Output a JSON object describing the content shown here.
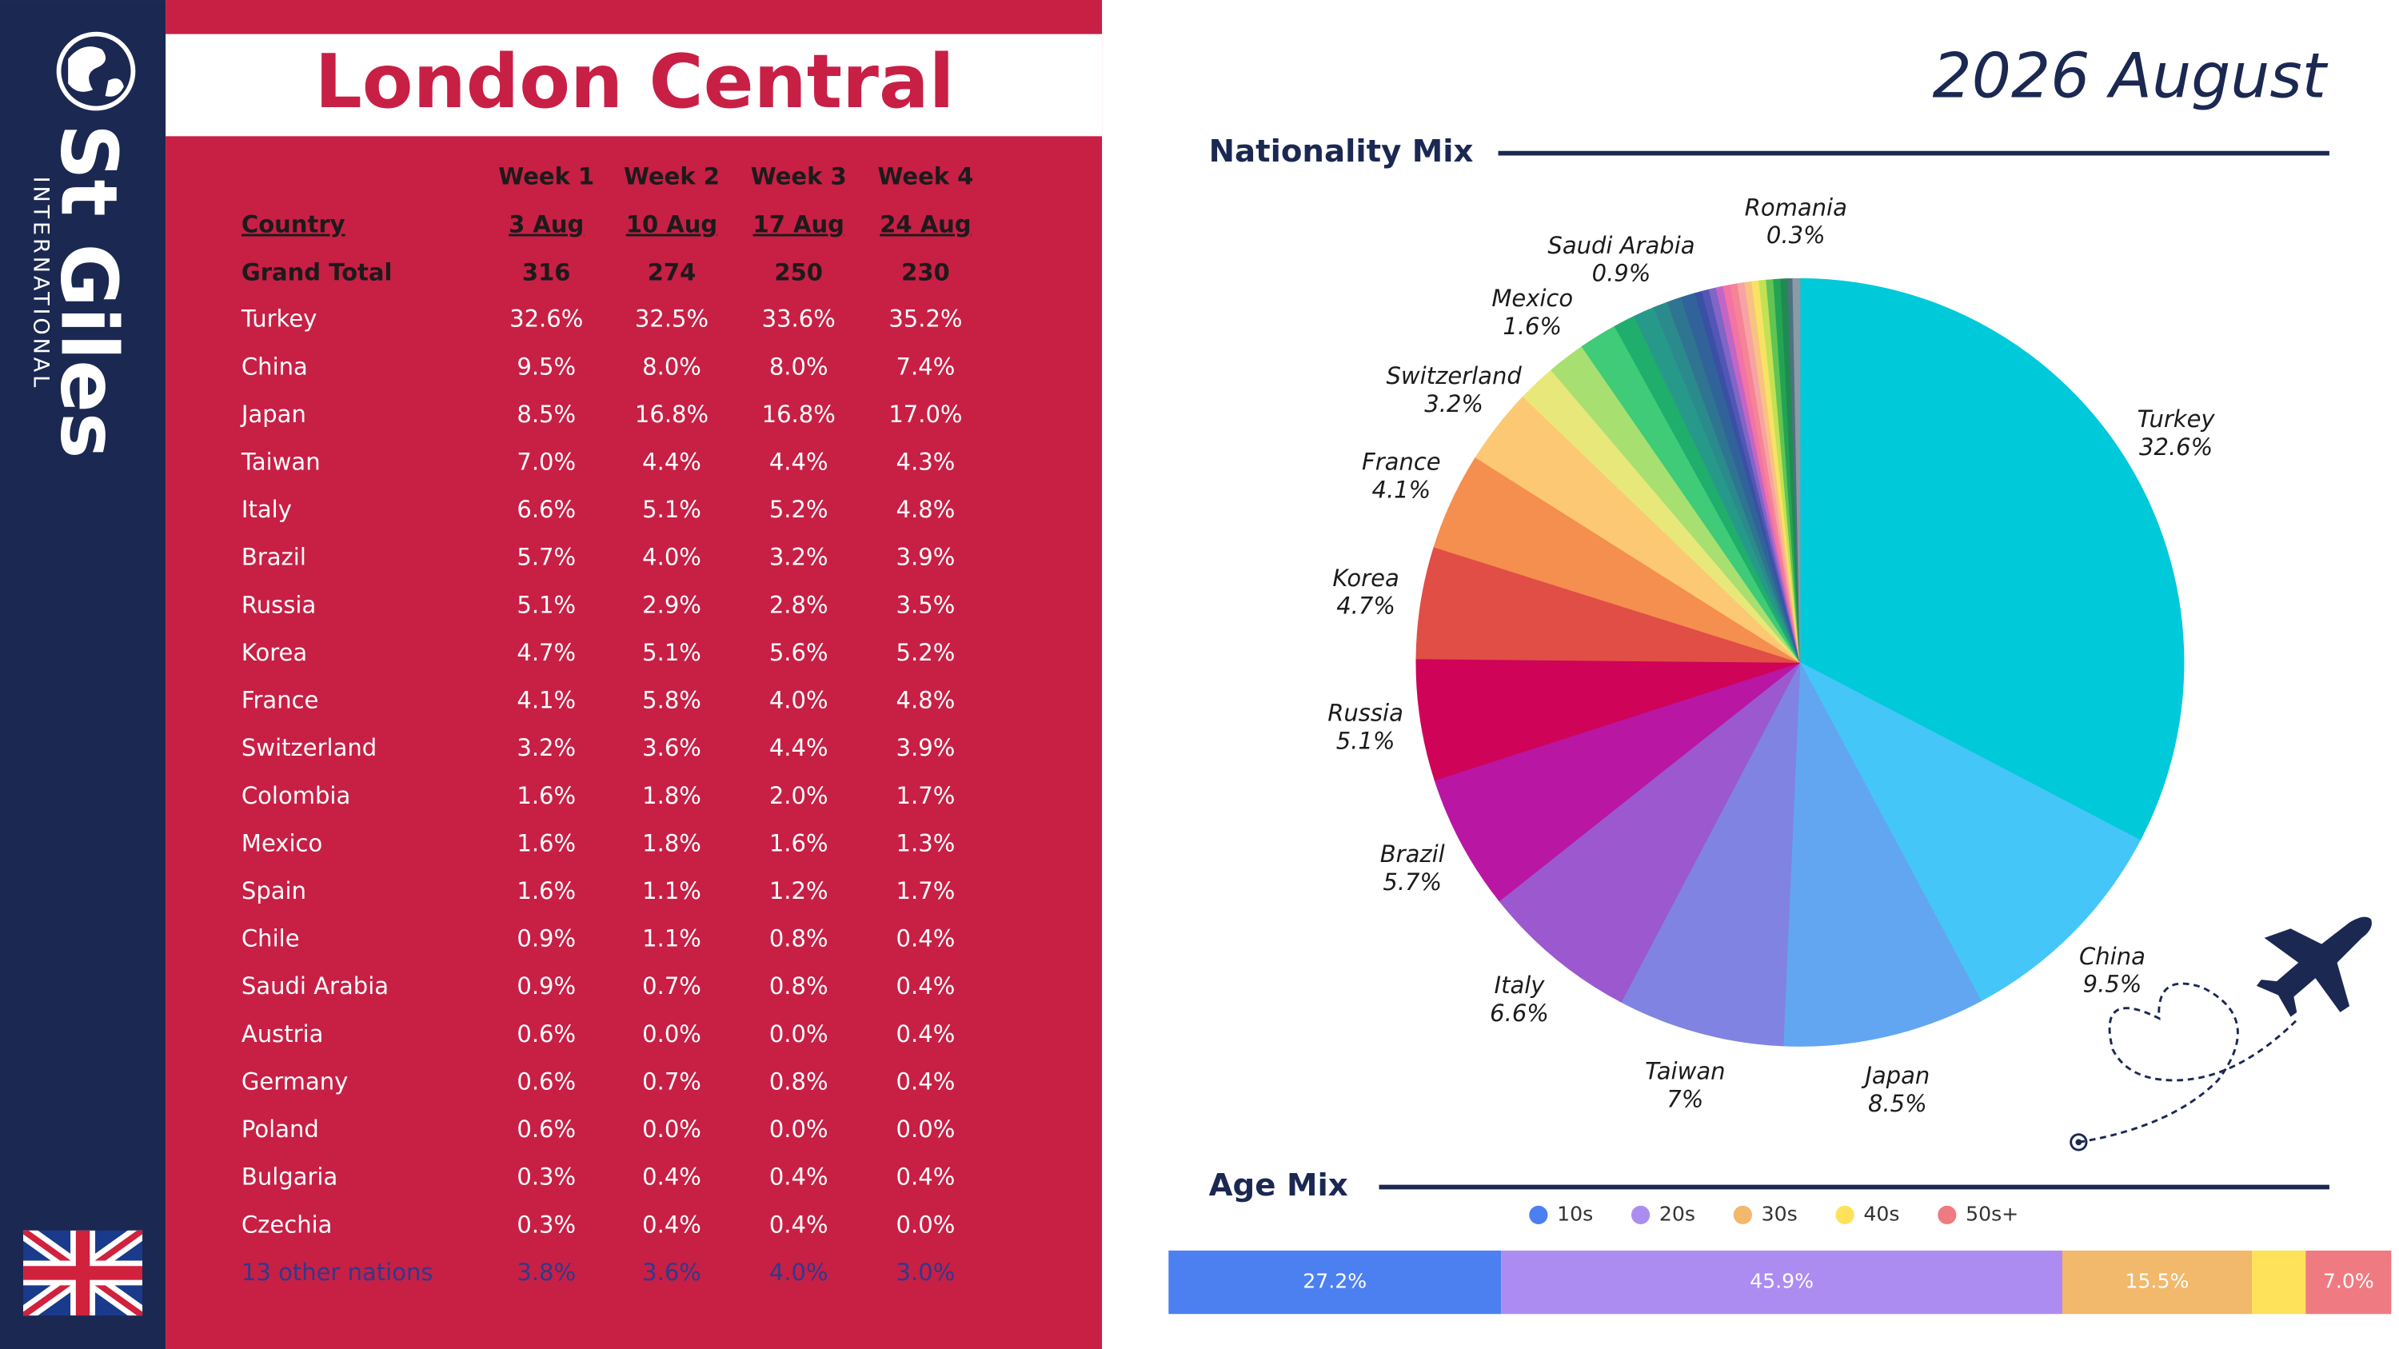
{
  "brand": {
    "name": "St Giles",
    "sub": "INTERNATIONAL"
  },
  "title": "London Central",
  "period": "2026 August",
  "table": {
    "weeks": [
      "Week 1",
      "Week 2",
      "Week 3",
      "Week 4"
    ],
    "header": [
      "Country",
      "3 Aug",
      "10 Aug",
      "17 Aug",
      "24 Aug"
    ],
    "total": [
      "Grand Total",
      316,
      274,
      250,
      230
    ],
    "rows": [
      [
        "Turkey",
        "32.6%",
        "32.5%",
        "33.6%",
        "35.2%"
      ],
      [
        "China",
        "9.5%",
        "8.0%",
        "8.0%",
        "7.4%"
      ],
      [
        "Japan",
        "8.5%",
        "16.8%",
        "16.8%",
        "17.0%"
      ],
      [
        "Taiwan",
        "7.0%",
        "4.4%",
        "4.4%",
        "4.3%"
      ],
      [
        "Italy",
        "6.6%",
        "5.1%",
        "5.2%",
        "4.8%"
      ],
      [
        "Brazil",
        "5.7%",
        "4.0%",
        "3.2%",
        "3.9%"
      ],
      [
        "Russia",
        "5.1%",
        "2.9%",
        "2.8%",
        "3.5%"
      ],
      [
        "Korea",
        "4.7%",
        "5.1%",
        "5.6%",
        "5.2%"
      ],
      [
        "France",
        "4.1%",
        "5.8%",
        "4.0%",
        "4.8%"
      ],
      [
        "Switzerland",
        "3.2%",
        "3.6%",
        "4.4%",
        "3.9%"
      ],
      [
        "Colombia",
        "1.6%",
        "1.8%",
        "2.0%",
        "1.7%"
      ],
      [
        "Mexico",
        "1.6%",
        "1.8%",
        "1.6%",
        "1.3%"
      ],
      [
        "Spain",
        "1.6%",
        "1.1%",
        "1.2%",
        "1.7%"
      ],
      [
        "Chile",
        "0.9%",
        "1.1%",
        "0.8%",
        "0.4%"
      ],
      [
        "Saudi Arabia",
        "0.9%",
        "0.7%",
        "0.8%",
        "0.4%"
      ],
      [
        "Austria",
        "0.6%",
        "0.0%",
        "0.0%",
        "0.4%"
      ],
      [
        "Germany",
        "0.6%",
        "0.7%",
        "0.8%",
        "0.4%"
      ],
      [
        "Poland",
        "0.6%",
        "0.0%",
        "0.0%",
        "0.0%"
      ],
      [
        "Bulgaria",
        "0.3%",
        "0.4%",
        "0.4%",
        "0.4%"
      ],
      [
        "Czechia",
        "0.3%",
        "0.4%",
        "0.4%",
        "0.0%"
      ]
    ],
    "other": [
      "13 other nations",
      "3.8%",
      "3.6%",
      "4.0%",
      "3.0%"
    ]
  },
  "chart_data": [
    {
      "type": "pie",
      "title": "Nationality Mix",
      "labels": [
        "Turkey",
        "China",
        "Japan",
        "Taiwan",
        "Italy",
        "Brazil",
        "Russia",
        "Korea",
        "France",
        "Switzerland",
        null,
        "Mexico",
        null,
        null,
        "Saudi Arabia",
        null,
        null,
        null,
        null,
        null,
        null,
        null,
        null,
        null,
        null,
        null,
        null,
        null,
        null,
        null,
        null,
        null,
        "Romania"
      ],
      "values": [
        32.6,
        9.5,
        8.5,
        7,
        6.6,
        5.7,
        5.1,
        4.7,
        4.1,
        3.2,
        1.6,
        1.6,
        1.6,
        0.9,
        0.9,
        0.6,
        0.6,
        0.6,
        0.3,
        0.3,
        0.3,
        0.3,
        0.3,
        0.3,
        0.3,
        0.3,
        0.3,
        0.3,
        0.3,
        0.3,
        0.3,
        0.2,
        0.3
      ],
      "value_labels": [
        "32.6%",
        "9.5%",
        "8.5%",
        "7%",
        "6.6%",
        "5.7%",
        "5.1%",
        "4.7%",
        "4.1%",
        "3.2%",
        null,
        "1.6%",
        null,
        null,
        "0.9%",
        null,
        null,
        null,
        null,
        null,
        null,
        null,
        null,
        null,
        null,
        null,
        null,
        null,
        null,
        null,
        null,
        null,
        "0.3%"
      ],
      "colors": [
        "#00c9da",
        "#45c6f8",
        "#62a6f2",
        "#8083e2",
        "#9b58cf",
        "#b916a3",
        "#cf0358",
        "#e04e46",
        "#f48f4f",
        "#fdc873",
        "#e8e87a",
        "#a7e070",
        "#3fcb78",
        "#1fae6c",
        "#27998a",
        "#2b8a8c",
        "#2f7491",
        "#31639a",
        "#3a50a4",
        "#5356b6",
        "#8066c6",
        "#c266c6",
        "#f273a6",
        "#f58496",
        "#f8a3a3",
        "#f8c283",
        "#f8e264",
        "#c2e254",
        "#62c454",
        "#22a454",
        "#218a53",
        "#4f7181",
        "#8a9aa6"
      ]
    },
    {
      "type": "bar",
      "title": "Age Mix",
      "orientation": "horizontal",
      "stacked": true,
      "xlim": [
        0,
        100
      ],
      "series": [
        {
          "name": "10s",
          "color": "#4c80f1",
          "values": [
            27.2
          ],
          "value_labels": [
            "27.2%"
          ]
        },
        {
          "name": "20s",
          "color": "#ad8cf1",
          "values": [
            45.9
          ],
          "value_labels": [
            "45.9%"
          ]
        },
        {
          "name": "30s",
          "color": "#f2b86b",
          "values": [
            15.5
          ],
          "value_labels": [
            "15.5%"
          ]
        },
        {
          "name": "40s",
          "color": "#fde25a",
          "values": [
            4.4
          ]
        },
        {
          "name": "50s+",
          "color": "#f07a81",
          "values": [
            7.0
          ],
          "value_labels": [
            "7.0%"
          ]
        }
      ]
    }
  ]
}
